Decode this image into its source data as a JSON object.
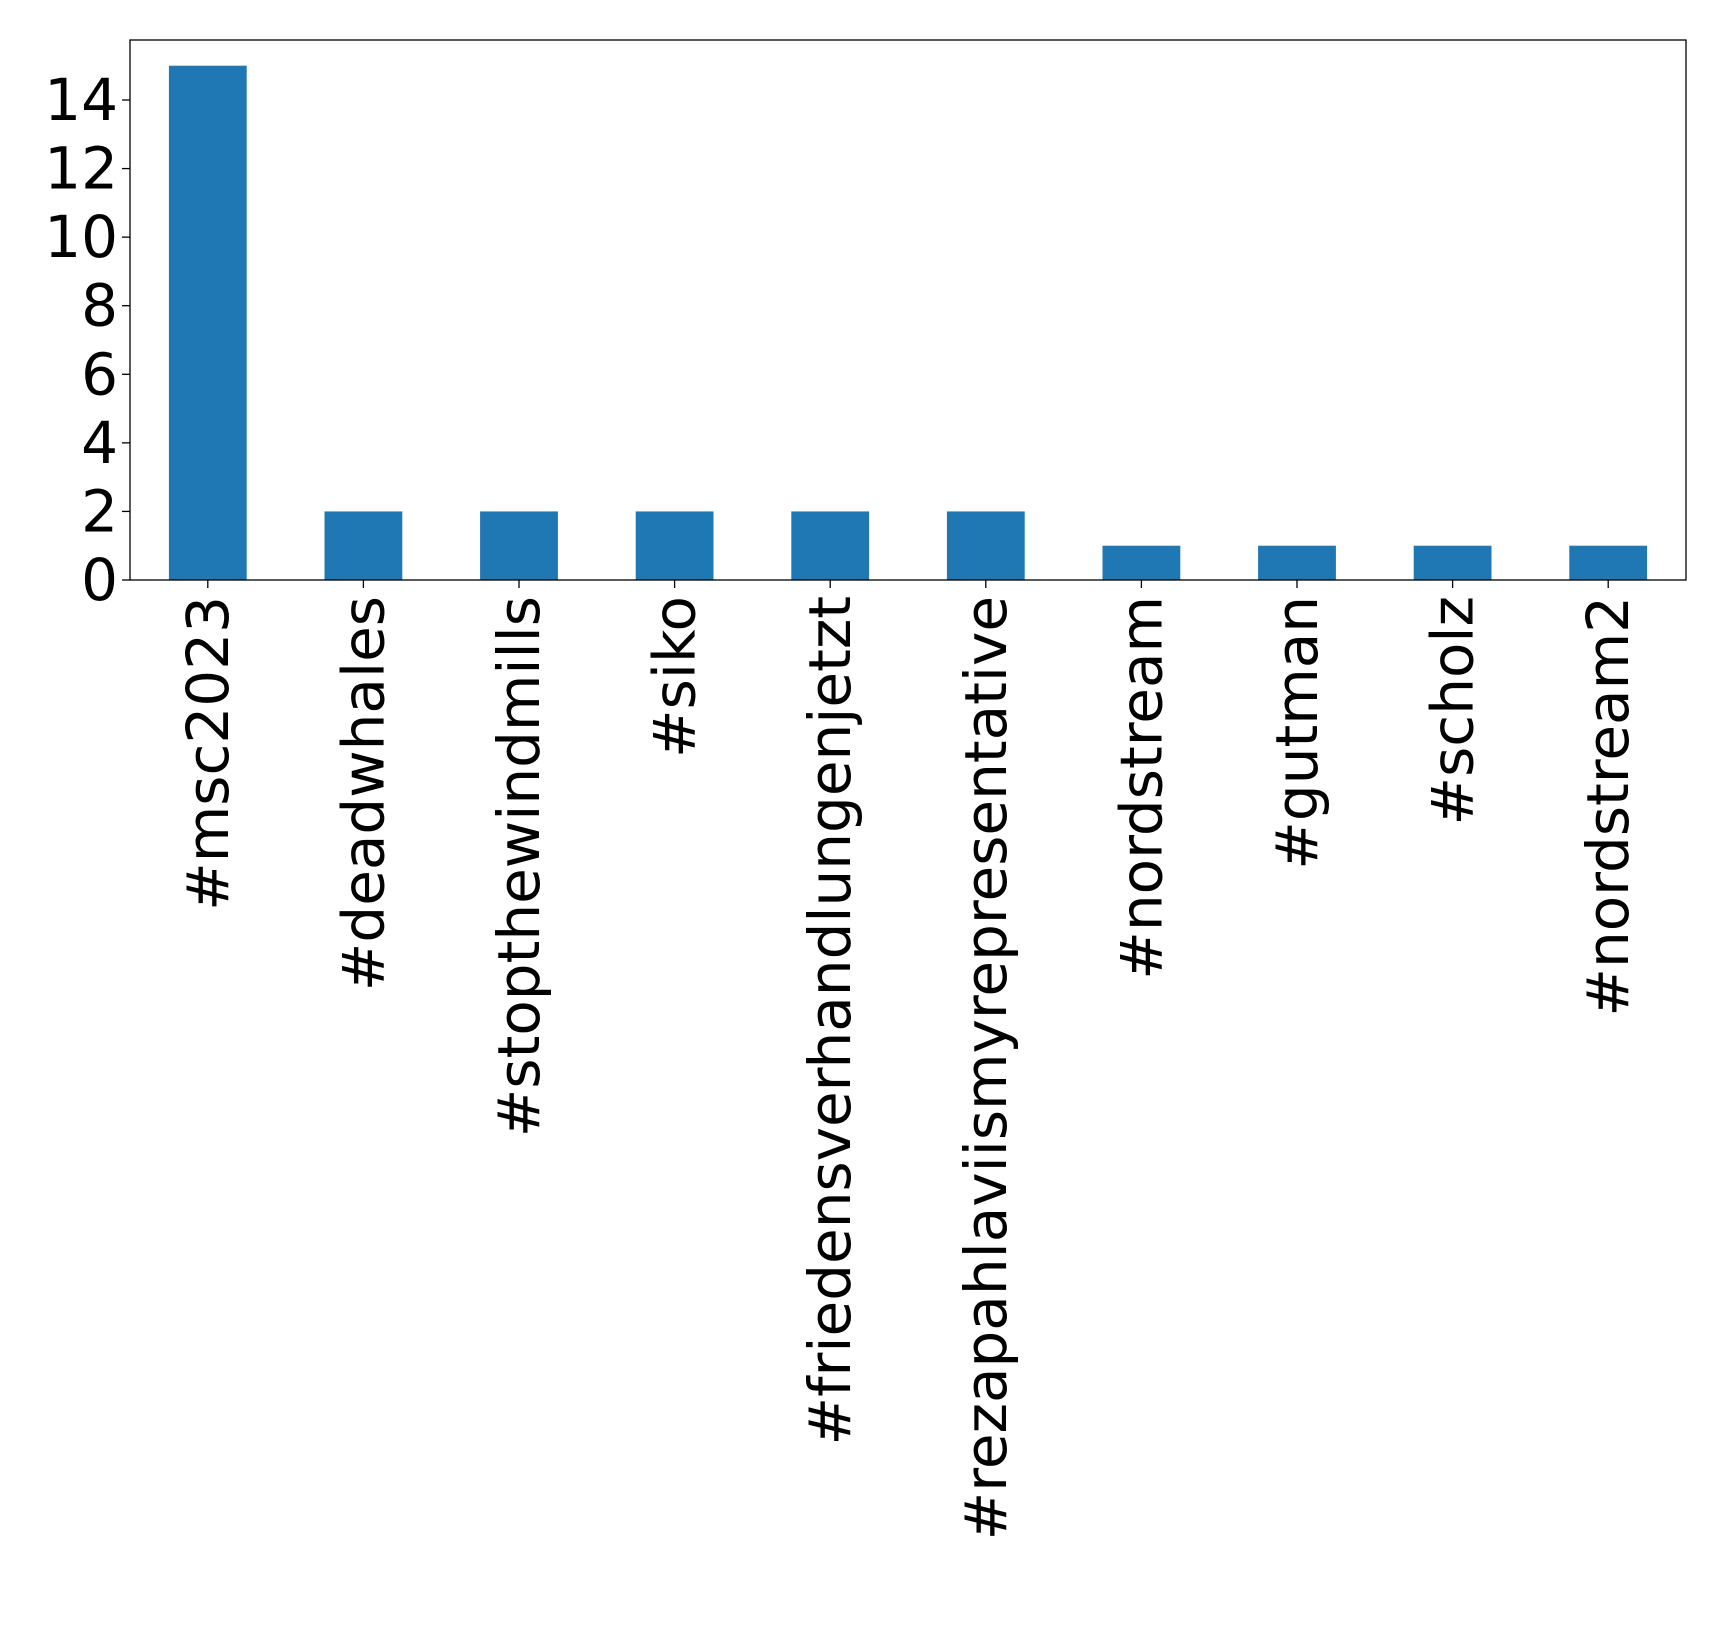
{
  "chart_data": {
    "type": "bar",
    "title": "",
    "xlabel": "",
    "ylabel": "",
    "categories": [
      "#msc2023",
      "#deadwhales",
      "#stopthewindmills",
      "#siko",
      "#friedensverhandlungenjetzt",
      "#rezapahlaviismyrepresentative",
      "#nordstream",
      "#gutman",
      "#scholz",
      "#nordstream2"
    ],
    "values": [
      15,
      2,
      2,
      2,
      2,
      2,
      1,
      1,
      1,
      1
    ],
    "ylim": [
      0,
      15.75
    ],
    "yticks": [
      "0",
      "2",
      "4",
      "6",
      "8",
      "10",
      "12",
      "14"
    ],
    "bar_color": "#1f77b4",
    "grid": false,
    "legend": "none"
  }
}
